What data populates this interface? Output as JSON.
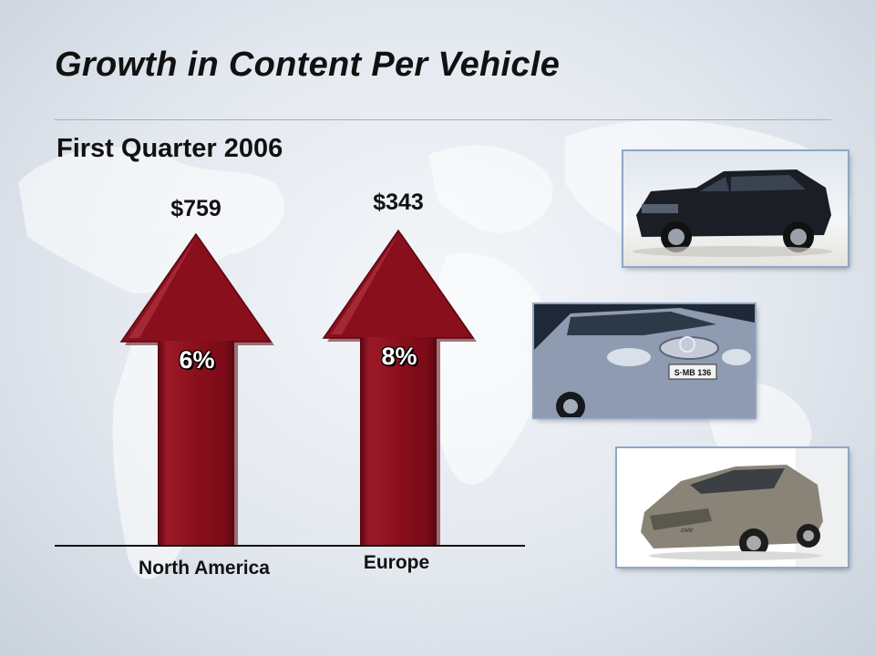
{
  "slide": {
    "title": "Growth in Content Per Vehicle",
    "subtitle": "First Quarter 2006"
  },
  "chart_data": {
    "type": "bar",
    "categories": [
      "North America",
      "Europe"
    ],
    "values": [
      759,
      343
    ],
    "value_labels": [
      "$759",
      "$343"
    ],
    "growth_labels": [
      "6%",
      "8%"
    ],
    "growth_values": [
      6,
      8
    ],
    "title": "",
    "xlabel": "",
    "ylabel": ""
  },
  "images": [
    {
      "icon": "suv-photo",
      "description_color": "#1a1c22"
    },
    {
      "icon": "compact-car-photo",
      "description_color": "#8e9bb0"
    },
    {
      "icon": "hatchback-photo",
      "description_color": "#8a8478"
    }
  ],
  "colors": {
    "arrow": "#8a0f1c",
    "arrow_highlight": "#b23a46",
    "arrow_shadow": "#5a0610"
  }
}
